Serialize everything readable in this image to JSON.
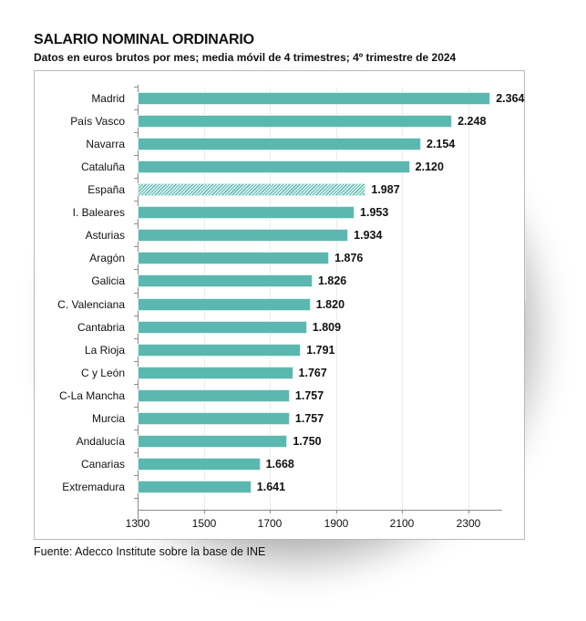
{
  "header": {
    "title": "SALARIO NOMINAL ORDINARIO",
    "subtitle": "Datos en euros brutos por mes; media móvil de 4 trimestres; 4º trimestre de 2024"
  },
  "footer": {
    "source": "Fuente: Adecco Institute sobre la base de INE"
  },
  "colors": {
    "bar": "#5bb8b0",
    "highlight_hatch": "#5bb8b0",
    "text": "#111111"
  },
  "chart_data": {
    "type": "bar",
    "orientation": "horizontal",
    "title": "SALARIO NOMINAL ORDINARIO",
    "subtitle": "Datos en euros brutos por mes; media móvil de 4 trimestres; 4º trimestre de 2024",
    "xlabel": "",
    "ylabel": "",
    "xlim": [
      1300,
      2400
    ],
    "xticks": [
      "1300",
      "1500",
      "1700",
      "1900",
      "2100",
      "2300"
    ],
    "grid": true,
    "legend": "none",
    "categories": [
      "Madrid",
      "País Vasco",
      "Navarra",
      "Cataluña",
      "España",
      "I. Baleares",
      "Asturias",
      "Aragón",
      "Galicia",
      "C. Valenciana",
      "Cantabria",
      "La Rioja",
      "C y León",
      "C-La Mancha",
      "Murcia",
      "Andalucía",
      "Canarias",
      "Extremadura"
    ],
    "values": [
      2364,
      2248,
      2154,
      2120,
      1987,
      1953,
      1934,
      1876,
      1826,
      1820,
      1809,
      1791,
      1767,
      1757,
      1757,
      1750,
      1668,
      1641
    ],
    "value_labels": [
      "2.364",
      "2.248",
      "2.154",
      "2.120",
      "1.987",
      "1.953",
      "1.934",
      "1.876",
      "1.826",
      "1.820",
      "1.809",
      "1.791",
      "1.767",
      "1.757",
      "1.757",
      "1.750",
      "1.668",
      "1.641"
    ],
    "highlighted": [
      "España"
    ],
    "source": "Fuente: Adecco Institute sobre la base de INE"
  }
}
